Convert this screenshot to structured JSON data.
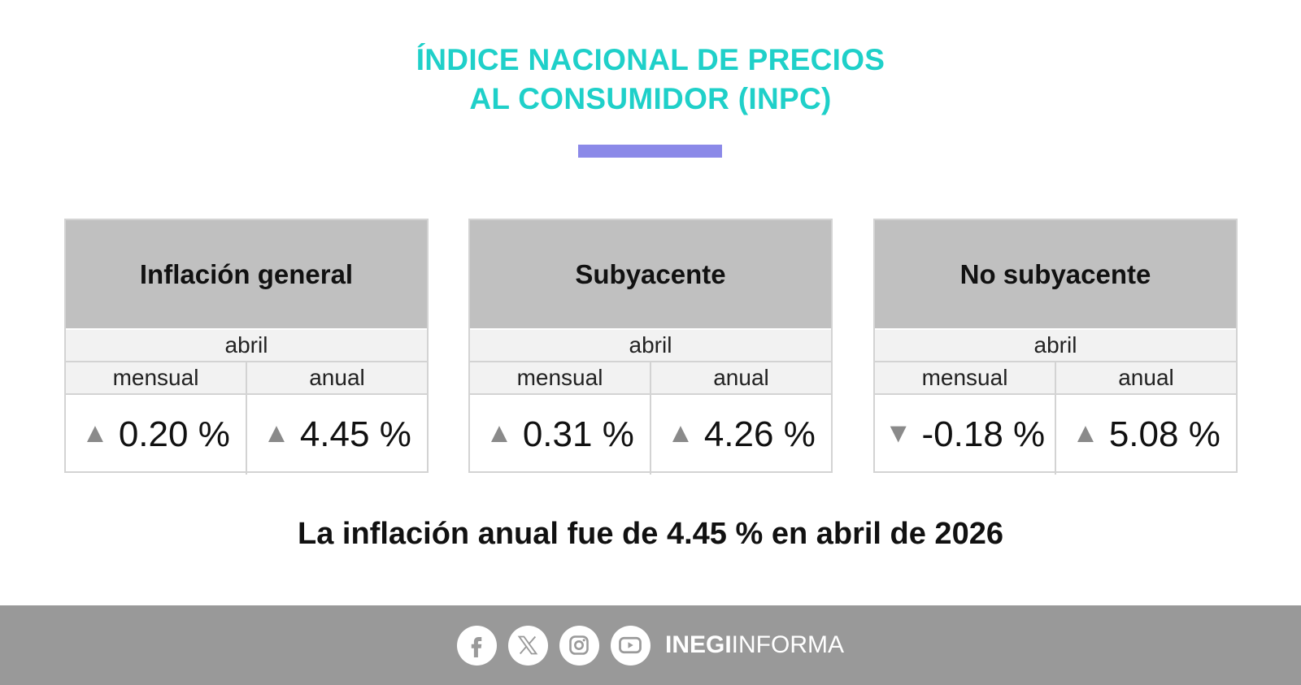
{
  "header": {
    "title_line1": "ÍNDICE NACIONAL DE PRECIOS",
    "title_line2": "AL CONSUMIDOR (INPC)",
    "title_color": "#1fd0c9",
    "rule_color": "#8b89e8"
  },
  "cards": [
    {
      "title": "Inflación general",
      "period": "abril",
      "col1": "mensual",
      "col2": "anual",
      "val1": "0.20 %",
      "dir1": "up",
      "arrow1": "▲",
      "val2": "4.45 %",
      "dir2": "up",
      "arrow2": "▲"
    },
    {
      "title": "Subyacente",
      "period": "abril",
      "col1": "mensual",
      "col2": "anual",
      "val1": "0.31 %",
      "dir1": "up",
      "arrow1": "▲",
      "val2": "4.26 %",
      "dir2": "up",
      "arrow2": "▲"
    },
    {
      "title": "No subyacente",
      "period": "abril",
      "col1": "mensual",
      "col2": "anual",
      "val1": "-0.18 %",
      "dir1": "down",
      "arrow1": "▼",
      "val2": "5.08 %",
      "dir2": "up",
      "arrow2": "▲"
    }
  ],
  "summary": "La inflación anual fue de 4.45 % en abril de 2026",
  "footer": {
    "social_icons": [
      "facebook-icon",
      "x-icon",
      "instagram-icon",
      "youtube-icon"
    ],
    "brand_bold": "INEGI",
    "brand_light": "INFORMA",
    "background": "#999999"
  }
}
